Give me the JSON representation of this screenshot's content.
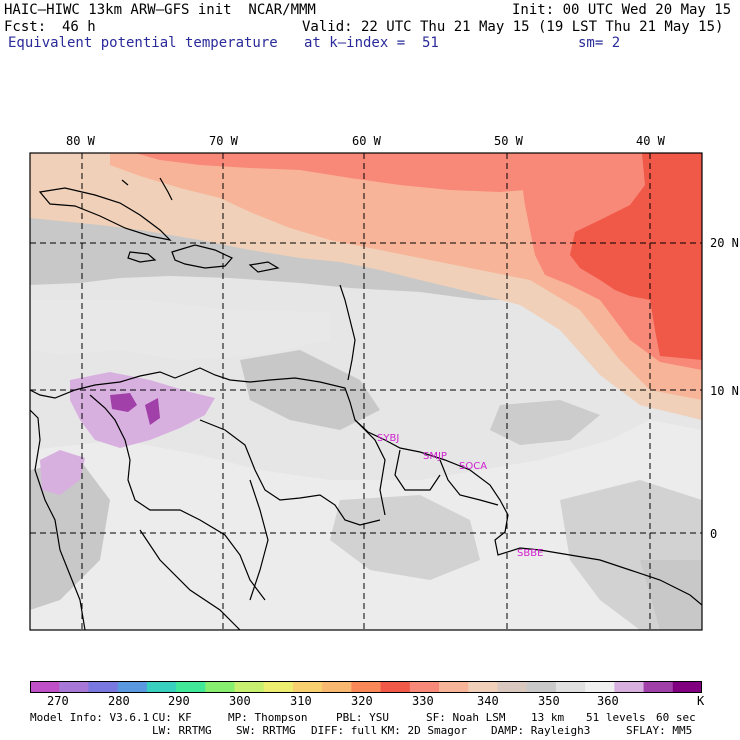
{
  "header": {
    "title": "HAIC–HIWC 13km ARW–GFS init  NCAR/MMM",
    "init": "Init: 00 UTC Wed 20 May 15",
    "fcst_label": "Fcst:",
    "fcst_value": "46 h",
    "valid": "Valid: 22 UTC Thu 21 May 15 (19 LST Thu 21 May 15)",
    "field": "Equivalent potential temperature",
    "level": "at k–index =  51",
    "smoothing": "sm= 2"
  },
  "map": {
    "lon_labels": [
      "80 W",
      "70 W",
      "60 W",
      "50 W",
      "40 W"
    ],
    "lat_labels": [
      "20 N",
      "10 N",
      "0"
    ],
    "stations": [
      {
        "id": "sybj",
        "label": "SYBJ"
      },
      {
        "id": "smjp",
        "label": "SMJP"
      },
      {
        "id": "soca",
        "label": "SOCA"
      },
      {
        "id": "sbbe",
        "label": "SBBE"
      }
    ],
    "station_color": "#d020d0"
  },
  "legend": {
    "ticks": [
      "270",
      "280",
      "290",
      "300",
      "310",
      "320",
      "330",
      "340",
      "350",
      "360"
    ],
    "unit": "K",
    "colors": [
      "#c050c8",
      "#a878d8",
      "#7878e0",
      "#5a98e0",
      "#3ad0c0",
      "#40e898",
      "#88ee70",
      "#c8f070",
      "#eeee70",
      "#f8d070",
      "#f8b870",
      "#f88858",
      "#f05848",
      "#f88878",
      "#f8b498",
      "#f0d0b8",
      "#d8c8c0",
      "#c8c8c8",
      "#e0e0e0",
      "#f0f0f0",
      "#d8b0e0",
      "#a040a8",
      "#800080"
    ]
  },
  "footer": {
    "line1": [
      "Model Info: V3.6.1",
      "CU: KF",
      "MP: Thompson",
      "PBL: YSU",
      "SF: Noah LSM",
      "13 km",
      "51 levels",
      "60 sec"
    ],
    "line2": [
      "LW: RRTMG",
      "SW: RRTMG",
      "DIFF: full",
      "KM: 2D Smagor",
      "DAMP: Rayleigh3",
      "SFLAY: MM5"
    ]
  }
}
